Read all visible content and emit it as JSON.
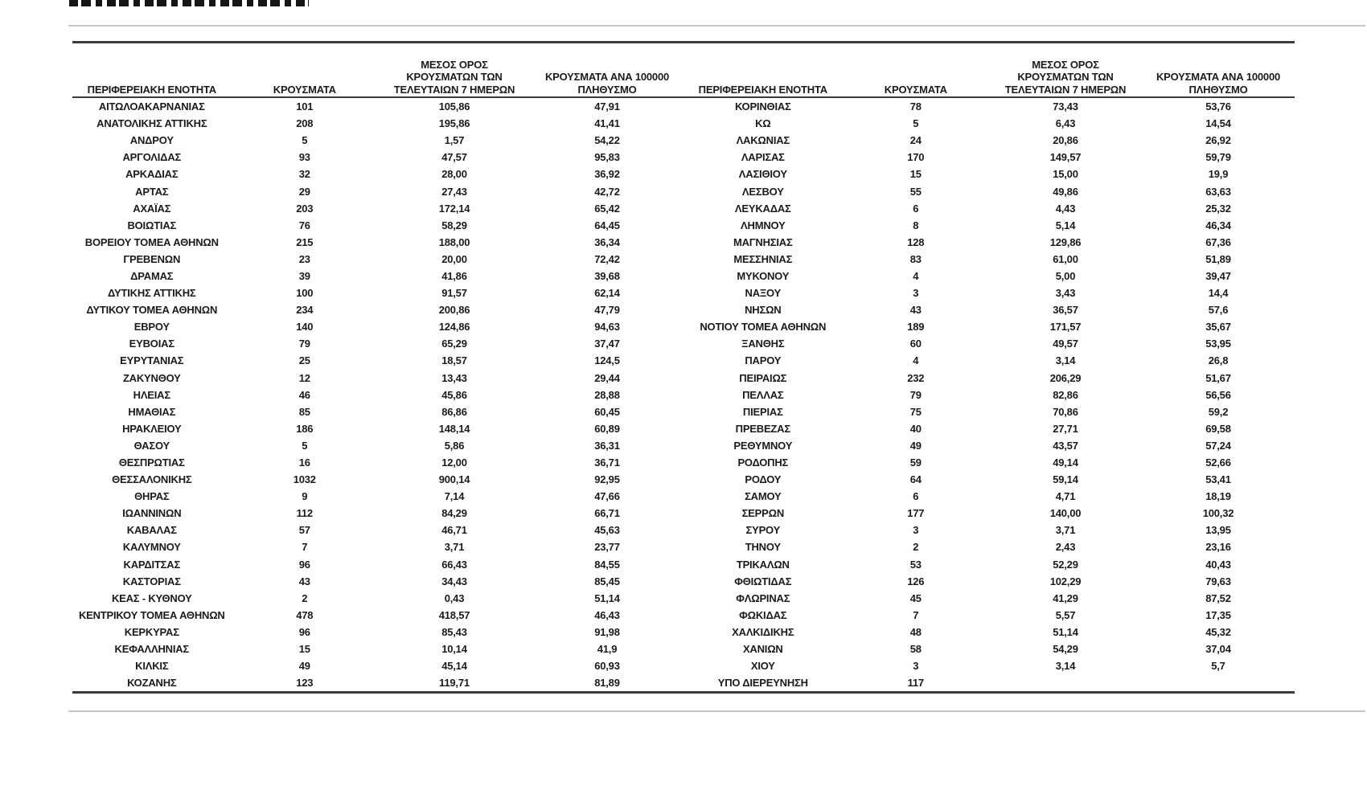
{
  "table": {
    "headers": {
      "region": "ΠΕΡΙΦΕΡΕΙΑΚΗ ΕΝΟΤΗΤΑ",
      "cases": "ΚΡΟΥΣΜΑΤΑ",
      "avg7": "ΜΕΣΟΣ ΟΡΟΣ\nΚΡΟΥΣΜΑΤΩΝ ΤΩΝ\nΤΕΛΕΥΤΑΙΩΝ 7 ΗΜΕΡΩΝ",
      "per100k": "ΚΡΟΥΣΜΑΤΑ ΑΝΑ 100000\nΠΛΗΘΥΣΜΟ"
    },
    "left_rows": [
      [
        "ΑΙΤΩΛΟΑΚΑΡΝΑΝΙΑΣ",
        "101",
        "105,86",
        "47,91"
      ],
      [
        "ΑΝΑΤΟΛΙΚΗΣ ΑΤΤΙΚΗΣ",
        "208",
        "195,86",
        "41,41"
      ],
      [
        "ΑΝΔΡΟΥ",
        "5",
        "1,57",
        "54,22"
      ],
      [
        "ΑΡΓΟΛΙΔΑΣ",
        "93",
        "47,57",
        "95,83"
      ],
      [
        "ΑΡΚΑΔΙΑΣ",
        "32",
        "28,00",
        "36,92"
      ],
      [
        "ΑΡΤΑΣ",
        "29",
        "27,43",
        "42,72"
      ],
      [
        "ΑΧΑΪΑΣ",
        "203",
        "172,14",
        "65,42"
      ],
      [
        "ΒΟΙΩΤΙΑΣ",
        "76",
        "58,29",
        "64,45"
      ],
      [
        "ΒΟΡΕΙΟΥ ΤΟΜΕΑ ΑΘΗΝΩΝ",
        "215",
        "188,00",
        "36,34"
      ],
      [
        "ΓΡΕΒΕΝΩΝ",
        "23",
        "20,00",
        "72,42"
      ],
      [
        "ΔΡΑΜΑΣ",
        "39",
        "41,86",
        "39,68"
      ],
      [
        "ΔΥΤΙΚΗΣ ΑΤΤΙΚΗΣ",
        "100",
        "91,57",
        "62,14"
      ],
      [
        "ΔΥΤΙΚΟΥ ΤΟΜΕΑ ΑΘΗΝΩΝ",
        "234",
        "200,86",
        "47,79"
      ],
      [
        "ΕΒΡΟΥ",
        "140",
        "124,86",
        "94,63"
      ],
      [
        "ΕΥΒΟΙΑΣ",
        "79",
        "65,29",
        "37,47"
      ],
      [
        "ΕΥΡΥΤΑΝΙΑΣ",
        "25",
        "18,57",
        "124,5"
      ],
      [
        "ΖΑΚΥΝΘΟΥ",
        "12",
        "13,43",
        "29,44"
      ],
      [
        "ΗΛΕΙΑΣ",
        "46",
        "45,86",
        "28,88"
      ],
      [
        "ΗΜΑΘΙΑΣ",
        "85",
        "86,86",
        "60,45"
      ],
      [
        "ΗΡΑΚΛΕΙΟΥ",
        "186",
        "148,14",
        "60,89"
      ],
      [
        "ΘΑΣΟΥ",
        "5",
        "5,86",
        "36,31"
      ],
      [
        "ΘΕΣΠΡΩΤΙΑΣ",
        "16",
        "12,00",
        "36,71"
      ],
      [
        "ΘΕΣΣΑΛΟΝΙΚΗΣ",
        "1032",
        "900,14",
        "92,95"
      ],
      [
        "ΘΗΡΑΣ",
        "9",
        "7,14",
        "47,66"
      ],
      [
        "ΙΩΑΝΝΙΝΩΝ",
        "112",
        "84,29",
        "66,71"
      ],
      [
        "ΚΑΒΑΛΑΣ",
        "57",
        "46,71",
        "45,63"
      ],
      [
        "ΚΑΛΥΜΝΟΥ",
        "7",
        "3,71",
        "23,77"
      ],
      [
        "ΚΑΡΔΙΤΣΑΣ",
        "96",
        "66,43",
        "84,55"
      ],
      [
        "ΚΑΣΤΟΡΙΑΣ",
        "43",
        "34,43",
        "85,45"
      ],
      [
        "ΚΕΑΣ - ΚΥΘΝΟΥ",
        "2",
        "0,43",
        "51,14"
      ],
      [
        "ΚΕΝΤΡΙΚΟΥ ΤΟΜΕΑ ΑΘΗΝΩΝ",
        "478",
        "418,57",
        "46,43"
      ],
      [
        "ΚΕΡΚΥΡΑΣ",
        "96",
        "85,43",
        "91,98"
      ],
      [
        "ΚΕΦΑΛΛΗΝΙΑΣ",
        "15",
        "10,14",
        "41,9"
      ],
      [
        "ΚΙΛΚΙΣ",
        "49",
        "45,14",
        "60,93"
      ],
      [
        "ΚΟΖΑΝΗΣ",
        "123",
        "119,71",
        "81,89"
      ]
    ],
    "right_rows": [
      [
        "ΚΟΡΙΝΘΙΑΣ",
        "78",
        "73,43",
        "53,76"
      ],
      [
        "ΚΩ",
        "5",
        "6,43",
        "14,54"
      ],
      [
        "ΛΑΚΩΝΙΑΣ",
        "24",
        "20,86",
        "26,92"
      ],
      [
        "ΛΑΡΙΣΑΣ",
        "170",
        "149,57",
        "59,79"
      ],
      [
        "ΛΑΣΙΘΙΟΥ",
        "15",
        "15,00",
        "19,9"
      ],
      [
        "ΛΕΣΒΟΥ",
        "55",
        "49,86",
        "63,63"
      ],
      [
        "ΛΕΥΚΑΔΑΣ",
        "6",
        "4,43",
        "25,32"
      ],
      [
        "ΛΗΜΝΟΥ",
        "8",
        "5,14",
        "46,34"
      ],
      [
        "ΜΑΓΝΗΣΙΑΣ",
        "128",
        "129,86",
        "67,36"
      ],
      [
        "ΜΕΣΣΗΝΙΑΣ",
        "83",
        "61,00",
        "51,89"
      ],
      [
        "ΜΥΚΟΝΟΥ",
        "4",
        "5,00",
        "39,47"
      ],
      [
        "ΝΑΞΟΥ",
        "3",
        "3,43",
        "14,4"
      ],
      [
        "ΝΗΣΩΝ",
        "43",
        "36,57",
        "57,6"
      ],
      [
        "ΝΟΤΙΟΥ ΤΟΜΕΑ ΑΘΗΝΩΝ",
        "189",
        "171,57",
        "35,67"
      ],
      [
        "ΞΑΝΘΗΣ",
        "60",
        "49,57",
        "53,95"
      ],
      [
        "ΠΑΡΟΥ",
        "4",
        "3,14",
        "26,8"
      ],
      [
        "ΠΕΙΡΑΙΩΣ",
        "232",
        "206,29",
        "51,67"
      ],
      [
        "ΠΕΛΛΑΣ",
        "79",
        "82,86",
        "56,56"
      ],
      [
        "ΠΙΕΡΙΑΣ",
        "75",
        "70,86",
        "59,2"
      ],
      [
        "ΠΡΕΒΕΖΑΣ",
        "40",
        "27,71",
        "69,58"
      ],
      [
        "ΡΕΘΥΜΝΟΥ",
        "49",
        "43,57",
        "57,24"
      ],
      [
        "ΡΟΔΟΠΗΣ",
        "59",
        "49,14",
        "52,66"
      ],
      [
        "ΡΟΔΟΥ",
        "64",
        "59,14",
        "53,41"
      ],
      [
        "ΣΑΜΟΥ",
        "6",
        "4,71",
        "18,19"
      ],
      [
        "ΣΕΡΡΩΝ",
        "177",
        "140,00",
        "100,32"
      ],
      [
        "ΣΥΡΟΥ",
        "3",
        "3,71",
        "13,95"
      ],
      [
        "ΤΗΝΟΥ",
        "2",
        "2,43",
        "23,16"
      ],
      [
        "ΤΡΙΚΑΛΩΝ",
        "53",
        "52,29",
        "40,43"
      ],
      [
        "ΦΘΙΩΤΙΔΑΣ",
        "126",
        "102,29",
        "79,63"
      ],
      [
        "ΦΛΩΡΙΝΑΣ",
        "45",
        "41,29",
        "87,52"
      ],
      [
        "ΦΩΚΙΔΑΣ",
        "7",
        "5,57",
        "17,35"
      ],
      [
        "ΧΑΛΚΙΔΙΚΗΣ",
        "48",
        "51,14",
        "45,32"
      ],
      [
        "ΧΑΝΙΩΝ",
        "58",
        "54,29",
        "37,04"
      ],
      [
        "ΧΙΟΥ",
        "3",
        "3,14",
        "5,7"
      ],
      [
        "ΥΠΟ ΔΙΕΡΕΥΝΗΣΗ",
        "117",
        "",
        ""
      ]
    ]
  },
  "colors": {
    "text": "#1b1b1b",
    "border_dark": "#3c3c3c",
    "border_light": "#c4c4c4"
  }
}
